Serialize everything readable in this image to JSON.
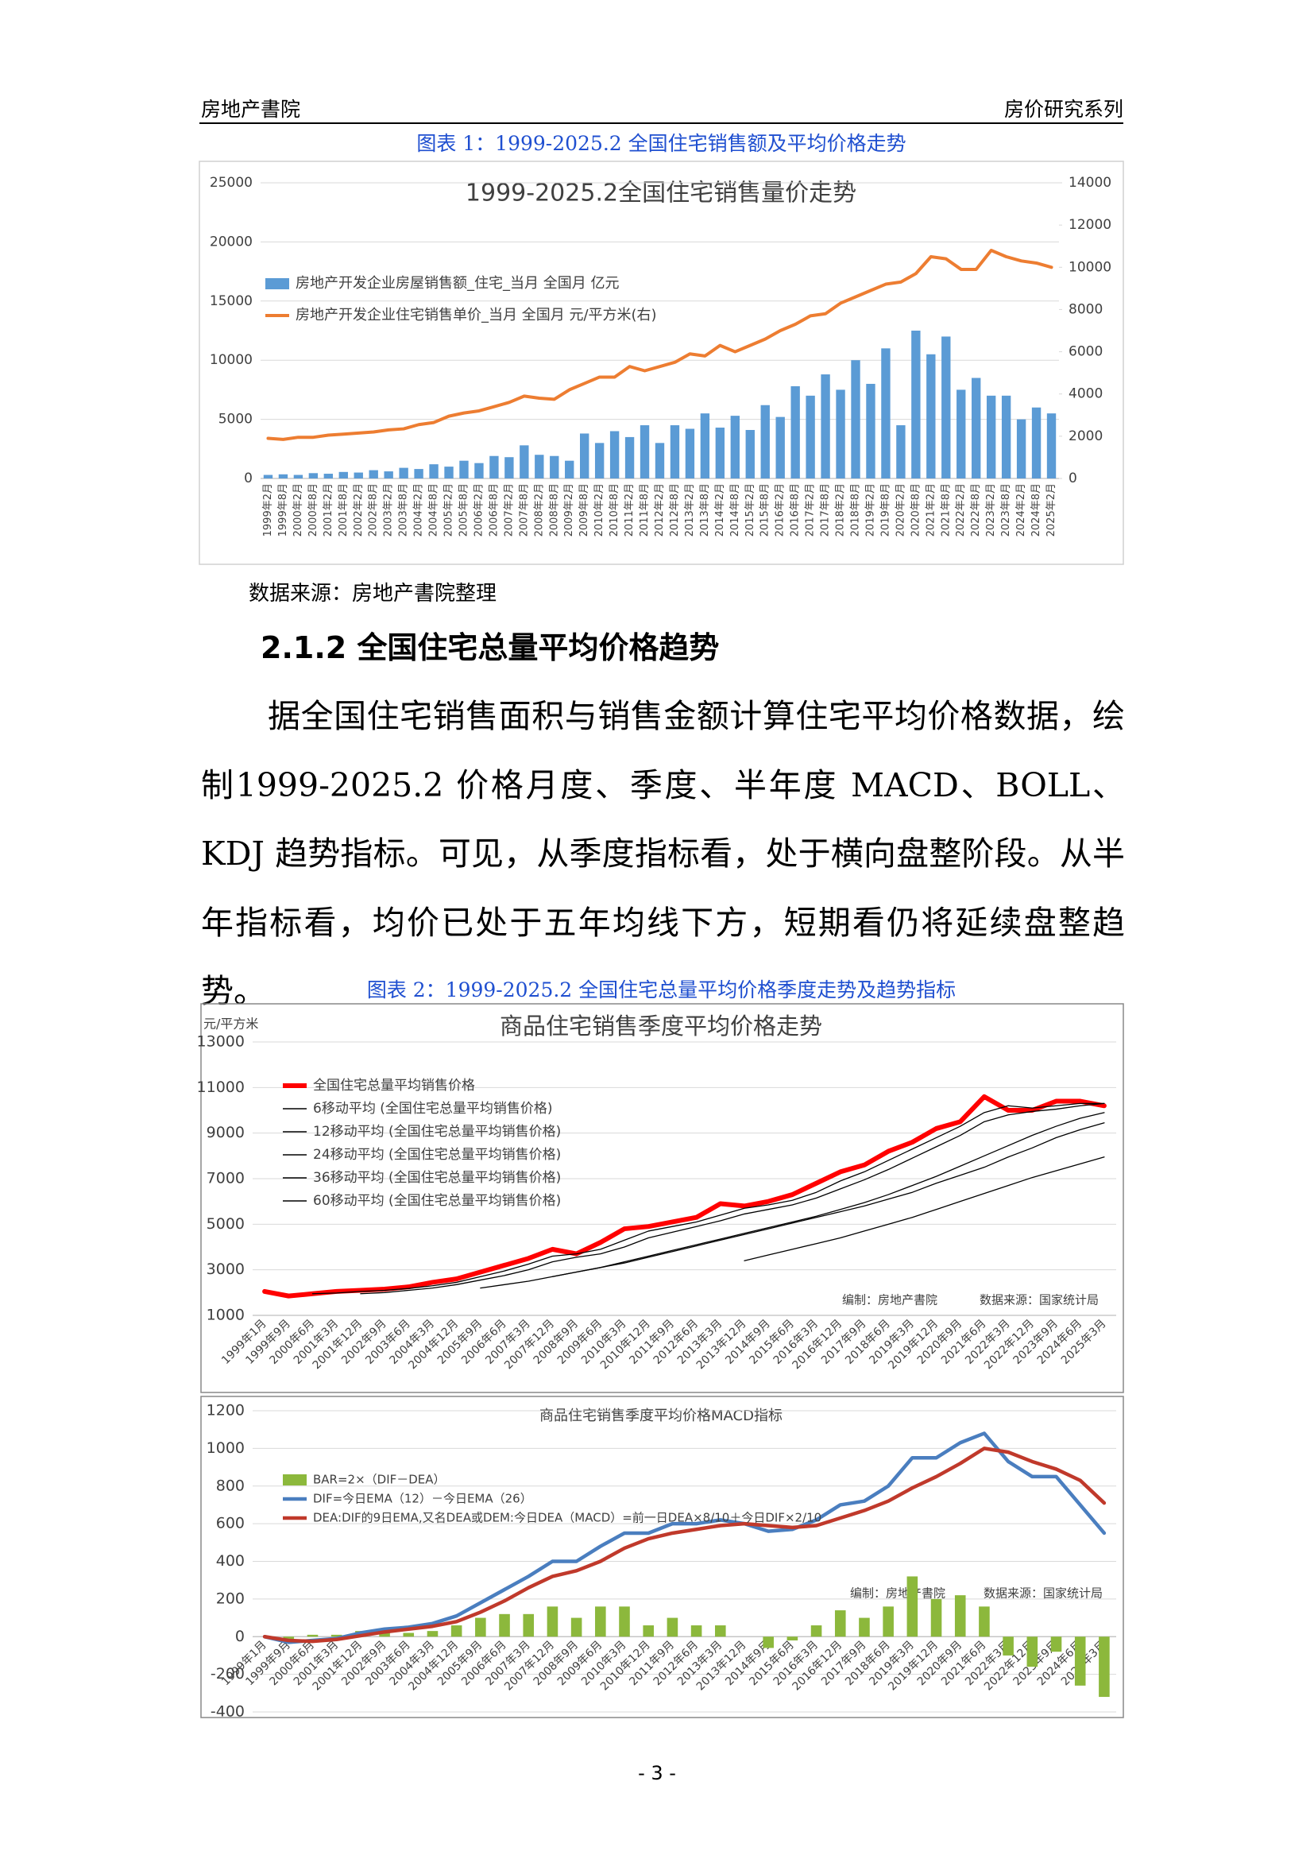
{
  "header": {
    "left": "房地产書院",
    "right": "房价研究系列"
  },
  "figure1": {
    "caption": "图表 1：1999-2025.2 全国住宅销售额及平均价格走势",
    "source": "数据来源：房地产書院整理"
  },
  "section": {
    "heading": "2.1.2 全国住宅总量平均价格趋势",
    "paragraph": "据全国住宅销售面积与销售金额计算住宅平均价格数据，绘制1999-2025.2 价格月度、季度、半年度 MACD、BOLL、KDJ 趋势指标。可见，从季度指标看，处于横向盘整阶段。从半年指标看，均价已处于五年均线下方，短期看仍将延续盘整趋势。"
  },
  "figure2": {
    "caption": "图表 2：1999-2025.2 全国住宅总量平均价格季度走势及趋势指标"
  },
  "footer": {
    "page": "- 3 -"
  },
  "chart_data": [
    {
      "type": "combo",
      "title": "1999-2025.2全国住宅销售量价走势",
      "categories": [
        "1999年2月",
        "1999年8月",
        "2000年2月",
        "2000年8月",
        "2001年2月",
        "2001年8月",
        "2002年2月",
        "2002年8月",
        "2003年2月",
        "2003年8月",
        "2004年2月",
        "2004年8月",
        "2005年2月",
        "2005年8月",
        "2006年2月",
        "2006年8月",
        "2007年2月",
        "2007年8月",
        "2008年2月",
        "2008年8月",
        "2009年2月",
        "2009年8月",
        "2010年2月",
        "2010年8月",
        "2011年2月",
        "2011年8月",
        "2012年2月",
        "2012年8月",
        "2013年2月",
        "2013年8月",
        "2014年2月",
        "2014年8月",
        "2015年2月",
        "2015年8月",
        "2016年2月",
        "2016年8月",
        "2017年2月",
        "2017年8月",
        "2018年2月",
        "2018年8月",
        "2019年2月",
        "2019年8月",
        "2020年2月",
        "2020年8月",
        "2021年2月",
        "2021年8月",
        "2022年2月",
        "2022年8月",
        "2023年2月",
        "2023年8月",
        "2024年2月",
        "2024年8月",
        "2025年2月"
      ],
      "series": [
        {
          "name": "房地产开发企业房屋销售额_住宅_当月 全国月 亿元",
          "type": "bar",
          "color": "#5b9bd5",
          "values": [
            300,
            350,
            300,
            450,
            400,
            550,
            500,
            700,
            600,
            900,
            800,
            1200,
            1000,
            1500,
            1300,
            1900,
            1800,
            2800,
            2000,
            1900,
            1500,
            3800,
            3000,
            4000,
            3500,
            4500,
            3000,
            4500,
            4200,
            5500,
            4300,
            5300,
            4100,
            6200,
            5200,
            7800,
            7000,
            8800,
            7500,
            10000,
            8000,
            11000,
            4500,
            12500,
            10500,
            12000,
            7500,
            8500,
            7000,
            7000,
            5000,
            6000,
            5500
          ]
        },
        {
          "name": "房地产开发企业住宅销售单价_当月 全国月 元/平方米(右)",
          "type": "line",
          "axis": "y2",
          "color": "#ed7d31",
          "values": [
            1900,
            1850,
            1950,
            1950,
            2050,
            2100,
            2150,
            2200,
            2300,
            2350,
            2550,
            2650,
            2950,
            3100,
            3200,
            3400,
            3600,
            3900,
            3800,
            3750,
            4200,
            4500,
            4800,
            4800,
            5300,
            5100,
            5300,
            5500,
            5900,
            5800,
            6300,
            6000,
            6300,
            6600,
            7000,
            7300,
            7700,
            7800,
            8300,
            8600,
            8900,
            9200,
            9300,
            9700,
            10500,
            10400,
            9900,
            9900,
            10800,
            10500,
            10300,
            10200,
            10000
          ]
        }
      ],
      "ylim": [
        0,
        25000
      ],
      "yticks": [
        0,
        5000,
        10000,
        15000,
        20000,
        25000
      ],
      "y2lim": [
        0,
        14000
      ],
      "y2ticks": [
        0,
        2000,
        4000,
        6000,
        8000,
        10000,
        12000,
        14000
      ],
      "grid": true
    },
    {
      "type": "line",
      "title": "商品住宅销售季度平均价格走势",
      "ylabel": "元/平方米",
      "annotations": [
        "编制：房地产書院",
        "数据来源：国家统计局"
      ],
      "categories": [
        "1999年1月",
        "1999年9月",
        "2000年6月",
        "2001年3月",
        "2001年12月",
        "2002年9月",
        "2003年6月",
        "2004年3月",
        "2004年12月",
        "2005年9月",
        "2006年6月",
        "2007年3月",
        "2007年12月",
        "2008年9月",
        "2009年6月",
        "2010年3月",
        "2010年12月",
        "2011年9月",
        "2012年6月",
        "2013年3月",
        "2013年12月",
        "2014年9月",
        "2015年6月",
        "2016年3月",
        "2016年12月",
        "2017年9月",
        "2018年6月",
        "2019年3月",
        "2019年12月",
        "2020年9月",
        "2021年6月",
        "2022年3月",
        "2022年12月",
        "2023年9月",
        "2024年6月",
        "2025年3月"
      ],
      "series": [
        {
          "name": "全国住宅总量平均销售价格",
          "color": "#ff0000",
          "values": [
            2050,
            1850,
            1950,
            2050,
            2100,
            2150,
            2250,
            2450,
            2600,
            2900,
            3200,
            3500,
            3900,
            3700,
            4200,
            4800,
            4900,
            5100,
            5300,
            5900,
            5800,
            6000,
            6300,
            6800,
            7300,
            7600,
            8200,
            8600,
            9200,
            9500,
            10600,
            10000,
            10000,
            10400,
            10400,
            10200
          ]
        },
        {
          "name": "6移动平均 (全国住宅总量平均销售价格)",
          "color": "#000000",
          "values": [
            null,
            null,
            1950,
            1980,
            2050,
            2100,
            2180,
            2300,
            2450,
            2700,
            2950,
            3250,
            3600,
            3700,
            3900,
            4300,
            4700,
            4900,
            5100,
            5400,
            5700,
            5850,
            6050,
            6400,
            6900,
            7300,
            7800,
            8300,
            8800,
            9300,
            9900,
            10200,
            10100,
            10200,
            10300,
            10300
          ]
        },
        {
          "name": "12移动平均 (全国住宅总量平均销售价格)",
          "color": "#000000",
          "values": [
            null,
            null,
            null,
            null,
            1950,
            2000,
            2100,
            2200,
            2350,
            2550,
            2750,
            3000,
            3350,
            3550,
            3700,
            4000,
            4400,
            4650,
            4900,
            5150,
            5450,
            5650,
            5850,
            6150,
            6550,
            6950,
            7400,
            7900,
            8400,
            8900,
            9500,
            9800,
            9950,
            10050,
            10200,
            10300
          ]
        },
        {
          "name": "24移动平均 (全国住宅总量平均销售价格)",
          "color": "#000000",
          "values": [
            null,
            null,
            null,
            null,
            null,
            null,
            null,
            null,
            null,
            2200,
            2350,
            2500,
            2700,
            2900,
            3100,
            3350,
            3600,
            3850,
            4100,
            4350,
            4600,
            4850,
            5100,
            5350,
            5650,
            5950,
            6300,
            6700,
            7100,
            7550,
            8000,
            8450,
            8900,
            9300,
            9650,
            9900
          ]
        },
        {
          "name": "36移动平均 (全国住宅总量平均销售价格)",
          "color": "#000000",
          "values": [
            null,
            null,
            null,
            null,
            null,
            null,
            null,
            null,
            null,
            null,
            null,
            null,
            2700,
            2900,
            3100,
            3300,
            3550,
            3800,
            4050,
            4300,
            4550,
            4800,
            5050,
            5300,
            5550,
            5800,
            6100,
            6400,
            6800,
            7150,
            7500,
            7950,
            8350,
            8800,
            9150,
            9450
          ]
        },
        {
          "name": "60移动平均 (全国住宅总量平均销售价格)",
          "color": "#000000",
          "values": [
            null,
            null,
            null,
            null,
            null,
            null,
            null,
            null,
            null,
            null,
            null,
            null,
            null,
            null,
            null,
            null,
            null,
            null,
            null,
            null,
            3400,
            3650,
            3900,
            4150,
            4400,
            4700,
            5000,
            5300,
            5650,
            6000,
            6350,
            6700,
            7050,
            7350,
            7650,
            7950
          ]
        }
      ],
      "ylim": [
        1000,
        13000
      ],
      "yticks": [
        1000,
        3000,
        5000,
        7000,
        9000,
        11000,
        13000
      ],
      "grid": true
    },
    {
      "type": "combo",
      "title": "商品住宅销售季度平均价格MACD指标",
      "annotations": [
        "编制：房地产書院",
        "数据来源：国家统计局"
      ],
      "categories": [
        "1999年1月",
        "1999年9月",
        "2000年6月",
        "2001年3月",
        "2001年12月",
        "2002年9月",
        "2003年6月",
        "2004年3月",
        "2004年12月",
        "2005年9月",
        "2006年6月",
        "2007年3月",
        "2007年12月",
        "2008年9月",
        "2009年6月",
        "2010年3月",
        "2010年12月",
        "2011年9月",
        "2012年6月",
        "2013年3月",
        "2013年12月",
        "2014年9月",
        "2015年6月",
        "2016年3月",
        "2016年12月",
        "2017年9月",
        "2018年6月",
        "2019年3月",
        "2019年12月",
        "2020年9月",
        "2021年6月",
        "2022年3月",
        "2022年12月",
        "2023年9月",
        "2024年6月",
        "2025年3月"
      ],
      "series": [
        {
          "name": "BAR=2×（DIF－DEA）",
          "type": "bar",
          "color": "#8cb83c",
          "values": [
            0,
            -20,
            10,
            10,
            30,
            30,
            20,
            30,
            60,
            100,
            120,
            120,
            160,
            100,
            160,
            160,
            60,
            100,
            60,
            60,
            0,
            -60,
            -20,
            60,
            140,
            100,
            160,
            320,
            200,
            220,
            160,
            -100,
            -160,
            -80,
            -260,
            -320
          ]
        },
        {
          "name": "DIF=今日EMA（12）－今日EMA（26）",
          "type": "line",
          "color": "#4a7ebf",
          "values": [
            0,
            -30,
            -20,
            -10,
            20,
            40,
            50,
            70,
            110,
            180,
            250,
            320,
            400,
            400,
            480,
            550,
            550,
            600,
            600,
            620,
            600,
            560,
            570,
            620,
            700,
            720,
            800,
            950,
            950,
            1030,
            1080,
            930,
            850,
            850,
            700,
            550
          ]
        },
        {
          "name": "DEA:DIF的9日EMA,又名DEA或DEM:今日DEA（MACD）=前一日DEA×8/10＋今日DIF×2/10",
          "type": "line",
          "color": "#c0392b",
          "values": [
            0,
            -20,
            -25,
            -15,
            5,
            25,
            40,
            55,
            80,
            130,
            190,
            260,
            320,
            350,
            400,
            470,
            520,
            550,
            570,
            590,
            600,
            590,
            580,
            590,
            630,
            670,
            720,
            790,
            850,
            920,
            1000,
            980,
            930,
            890,
            830,
            710
          ]
        }
      ],
      "ylim": [
        -400,
        1200
      ],
      "yticks": [
        -400,
        -200,
        0,
        200,
        400,
        600,
        800,
        1000,
        1200
      ],
      "grid": true
    }
  ]
}
